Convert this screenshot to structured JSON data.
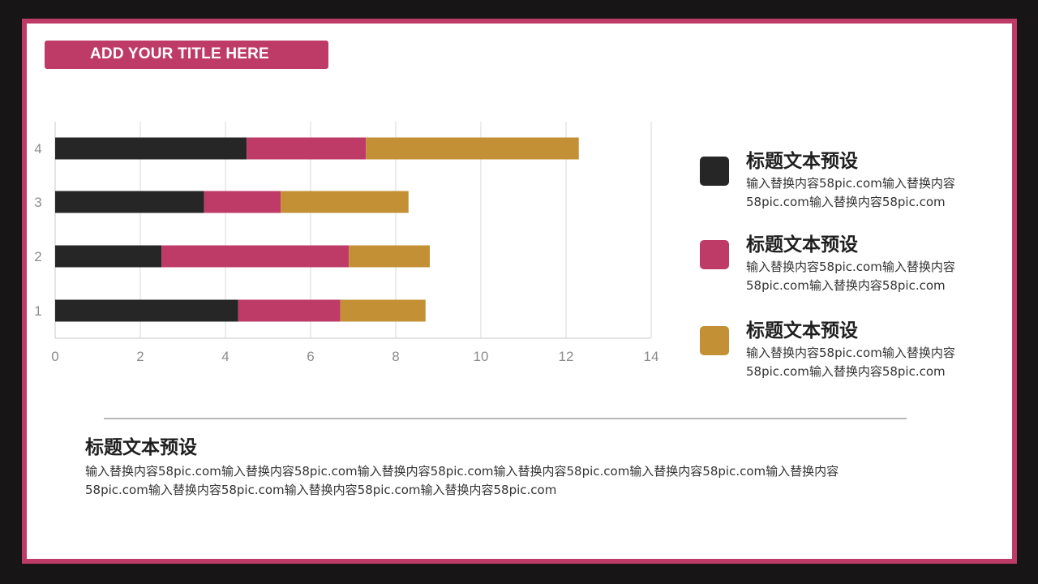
{
  "header": {
    "title": "ADD YOUR TITLE HERE",
    "accent_color": "#be3b68"
  },
  "chart_data": {
    "type": "bar",
    "orientation": "horizontal",
    "stacked": true,
    "categories": [
      "1",
      "2",
      "3",
      "4"
    ],
    "series": [
      {
        "color": "#262626",
        "values": [
          4.3,
          2.5,
          3.5,
          4.5
        ]
      },
      {
        "color": "#be3b68",
        "values": [
          2.4,
          4.4,
          1.8,
          2.8
        ]
      },
      {
        "color": "#c39035",
        "values": [
          2.0,
          1.9,
          3.0,
          5.0
        ]
      }
    ],
    "xlim": [
      0,
      14
    ],
    "xticks": [
      "0",
      "2",
      "4",
      "6",
      "8",
      "10",
      "12",
      "14"
    ],
    "grid": true
  },
  "legend": [
    {
      "title": "标题文本预设",
      "desc": "输入替换内容58pic.com输入替换内容58pic.com输入替换内容58pic.com",
      "color": "#262626"
    },
    {
      "title": "标题文本预设",
      "desc": "输入替换内容58pic.com输入替换内容58pic.com输入替换内容58pic.com",
      "color": "#be3b68"
    },
    {
      "title": "标题文本预设",
      "desc": "输入替换内容58pic.com输入替换内容58pic.com输入替换内容58pic.com",
      "color": "#c39035"
    }
  ],
  "bottom": {
    "title": "标题文本预设",
    "desc": "输入替换内容58pic.com输入替换内容58pic.com输入替换内容58pic.com输入替换内容58pic.com输入替换内容58pic.com输入替换内容58pic.com输入替换内容58pic.com输入替换内容58pic.com输入替换内容58pic.com"
  }
}
